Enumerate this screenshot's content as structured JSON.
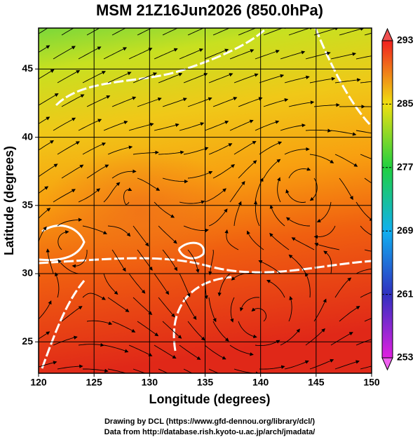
{
  "chart_data": {
    "type": "map",
    "title": "MSM 21Z16Jun2026 (850.0hPa)",
    "x_label": "Longitude (degrees)",
    "y_label": "Latitude  (degrees)",
    "xlim": [
      120,
      150
    ],
    "ylim": [
      22.7,
      48
    ],
    "xticks": [
      120,
      125,
      130,
      135,
      140,
      145,
      150
    ],
    "yticks": [
      25,
      30,
      35,
      40,
      45
    ],
    "grid": true,
    "colorbar": {
      "lim": [
        253,
        293
      ],
      "ticks": [
        253,
        261,
        269,
        277,
        285,
        293
      ]
    },
    "footer": [
      "Drawing by DCL (https://www.gfd-dennou.org/library/dcl/)",
      "Data from http://database.rish.kyoto-u.ac.jp/arch/jmadata/"
    ]
  }
}
